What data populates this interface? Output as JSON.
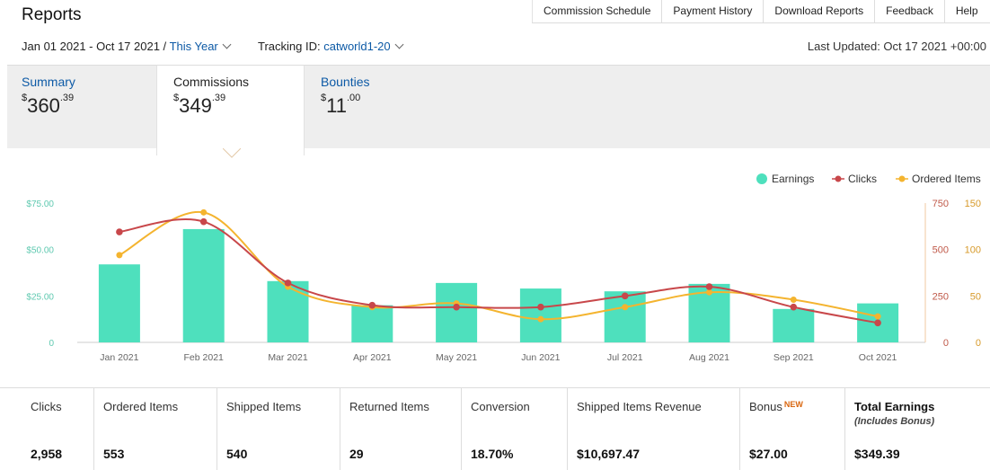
{
  "header": {
    "title": "Reports",
    "nav": [
      "Commission Schedule",
      "Payment History",
      "Download Reports",
      "Feedback",
      "Help"
    ]
  },
  "filters": {
    "date_range": "Jan 01 2021 - Oct 17 2021 /",
    "period": "This Year",
    "tracking_label": "Tracking ID:",
    "tracking_id": "catworld1-20",
    "last_updated": "Last Updated: Oct 17 2021 +00:00"
  },
  "tabs": {
    "summary": {
      "label": "Summary",
      "currency": "$",
      "whole": "360",
      "cents": ".39"
    },
    "commissions": {
      "label": "Commissions",
      "currency": "$",
      "whole": "349",
      "cents": ".39"
    },
    "bounties": {
      "label": "Bounties",
      "currency": "$",
      "whole": "11",
      "cents": ".00"
    }
  },
  "colors": {
    "earnings": "#4ee0bd",
    "clicks": "#c8474a",
    "ordered": "#f4b42f",
    "link": "#0d5aa6"
  },
  "chart_data": {
    "type": "bar",
    "categories": [
      "Jan 2021",
      "Feb 2021",
      "Mar 2021",
      "Apr 2021",
      "May 2021",
      "Jun 2021",
      "Jul 2021",
      "Aug 2021",
      "Sep 2021",
      "Oct 2021"
    ],
    "legend_position": "top-right",
    "series": [
      {
        "name": "Earnings",
        "type": "bar",
        "axis": "left",
        "values": [
          42,
          61,
          33,
          20,
          32,
          29,
          27.5,
          31.5,
          18,
          21
        ]
      },
      {
        "name": "Clicks",
        "type": "line",
        "axis": "right",
        "values": [
          595,
          650,
          320,
          200,
          190,
          190,
          250,
          300,
          190,
          105
        ]
      },
      {
        "name": "Ordered Items",
        "type": "line",
        "axis": "right",
        "values": [
          94,
          140,
          60,
          38,
          42,
          25,
          38,
          54,
          46,
          28
        ]
      }
    ],
    "left_axis": {
      "ticks": [
        "0",
        "$25.00",
        "$50.00",
        "$75.00"
      ],
      "range": [
        0,
        75
      ]
    },
    "right_axis_1": {
      "ticks": [
        "0",
        "250",
        "500",
        "750"
      ],
      "range": [
        0,
        750
      ]
    },
    "right_axis_2": {
      "ticks": [
        "0",
        "50",
        "100",
        "150"
      ],
      "range": [
        0,
        150
      ]
    }
  },
  "stats": [
    {
      "label": "Clicks",
      "value": "2,958"
    },
    {
      "label": "Ordered Items",
      "value": "553"
    },
    {
      "label": "Shipped Items",
      "value": "540"
    },
    {
      "label": "Returned Items",
      "value": "29"
    },
    {
      "label": "Conversion",
      "value": "18.70%"
    },
    {
      "label": "Shipped Items Revenue",
      "value": "$10,697.47"
    },
    {
      "label": "Bonus",
      "badge": "NEW",
      "value": "$27.00"
    },
    {
      "label": "Total Earnings",
      "sub": "(Includes Bonus)",
      "value": "$349.39"
    }
  ]
}
